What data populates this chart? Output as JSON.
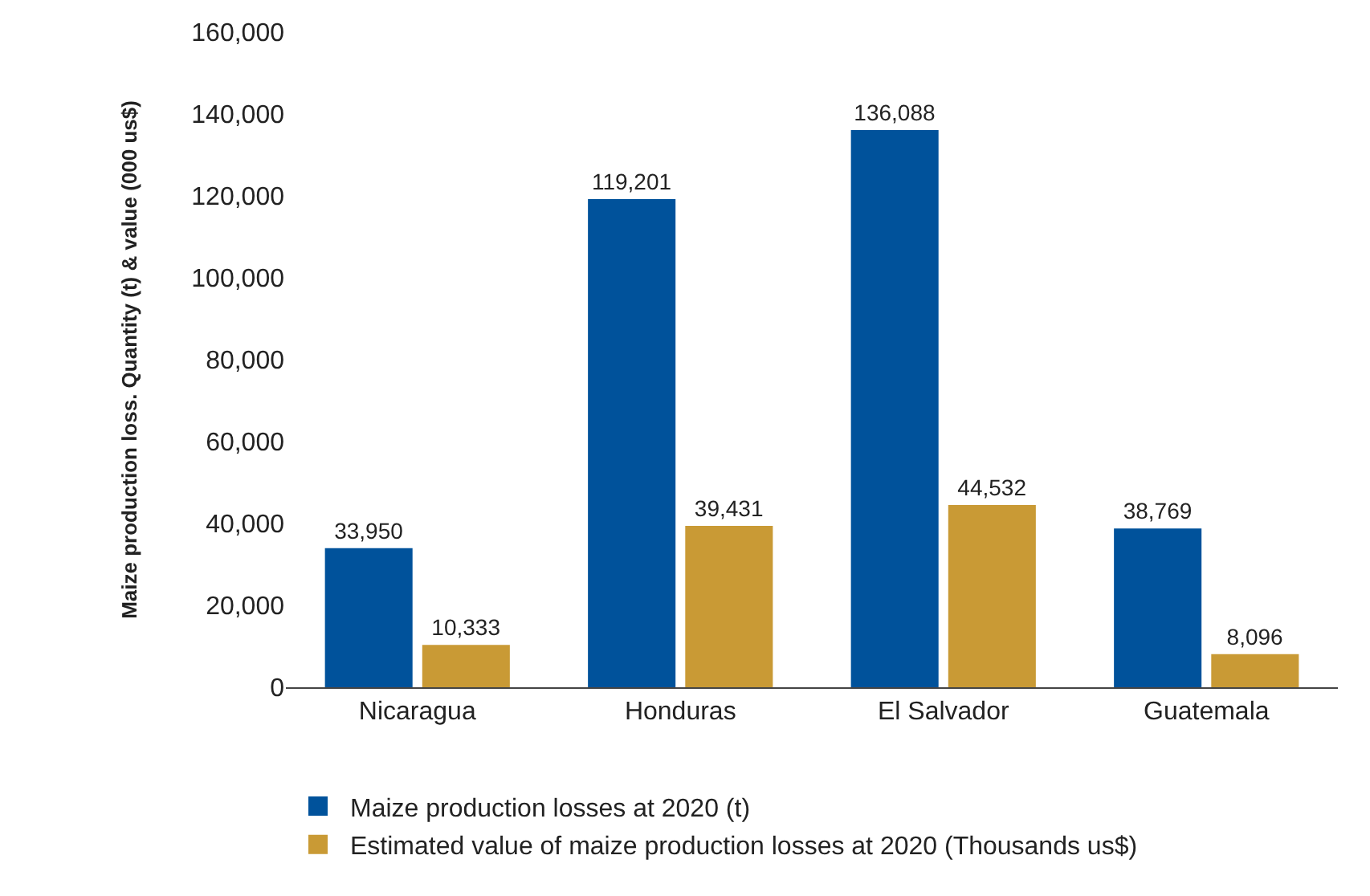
{
  "chart_data": {
    "type": "bar",
    "ylabel": "Maize production loss. Quantity (t) & value (000 us$)",
    "categories": [
      "Nicaragua",
      "Honduras",
      "El Salvador",
      "Guatemala"
    ],
    "series": [
      {
        "name": "Maize production losses at 2020 (t)",
        "color": "#00529b",
        "values": [
          33950,
          119201,
          136088,
          38769
        ],
        "value_labels": [
          "33,950",
          "119,201",
          "136,088",
          "38,769"
        ]
      },
      {
        "name": "Estimated value of maize production losses at 2020 (Thousands us$)",
        "color": "#c99a35",
        "values": [
          10333,
          39431,
          44532,
          8096
        ],
        "value_labels": [
          "10,333",
          "39,431",
          "44,532",
          "8,096"
        ]
      }
    ],
    "ylim": [
      0,
      160000
    ],
    "yticks": [
      {
        "value": 0,
        "label": "0"
      },
      {
        "value": 20000,
        "label": "20,000"
      },
      {
        "value": 40000,
        "label": "40,000"
      },
      {
        "value": 60000,
        "label": "60,000"
      },
      {
        "value": 80000,
        "label": "80,000"
      },
      {
        "value": 100000,
        "label": "100,000"
      },
      {
        "value": 120000,
        "label": "120,000"
      },
      {
        "value": 140000,
        "label": "140,000"
      },
      {
        "value": 160000,
        "label": "160,000"
      }
    ],
    "grid": false,
    "legend": "bottom"
  }
}
